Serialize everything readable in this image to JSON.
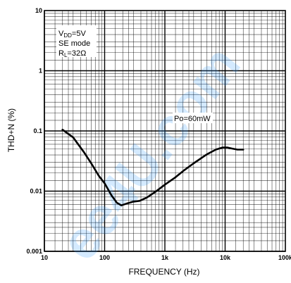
{
  "chart_data": {
    "type": "line",
    "xscale": "log",
    "yscale": "log",
    "xlim": [
      10,
      100000
    ],
    "ylim": [
      0.001,
      10
    ],
    "xlabel": "FREQUENCY (Hz)",
    "ylabel": "THD+N (%)",
    "xticks": [
      {
        "value": 10,
        "label": "10"
      },
      {
        "value": 100,
        "label": "100"
      },
      {
        "value": 1000,
        "label": "1k"
      },
      {
        "value": 10000,
        "label": "10k"
      },
      {
        "value": 100000,
        "label": "100k"
      }
    ],
    "yticks": [
      {
        "value": 10,
        "label": "10"
      },
      {
        "value": 1,
        "label": "1"
      },
      {
        "value": 0.1,
        "label": "0.1"
      },
      {
        "value": 0.01,
        "label": "0.01"
      },
      {
        "value": 0.001,
        "label": "0.001"
      }
    ],
    "grid": true,
    "conditions": {
      "vdd_prefix": "V",
      "vdd_sub": "DD",
      "vdd_value": "=5V",
      "mode": "SE mode",
      "rl_prefix": "R",
      "rl_sub": "L",
      "rl_value": "=32Ω"
    },
    "series": [
      {
        "name": "Po=60mW",
        "color": "#000000",
        "points": [
          {
            "x": 20,
            "y": 0.105
          },
          {
            "x": 30,
            "y": 0.078
          },
          {
            "x": 45,
            "y": 0.045
          },
          {
            "x": 60,
            "y": 0.029
          },
          {
            "x": 80,
            "y": 0.018
          },
          {
            "x": 100,
            "y": 0.0135
          },
          {
            "x": 130,
            "y": 0.0085
          },
          {
            "x": 160,
            "y": 0.0064
          },
          {
            "x": 190,
            "y": 0.0058
          },
          {
            "x": 230,
            "y": 0.0062
          },
          {
            "x": 300,
            "y": 0.0067
          },
          {
            "x": 380,
            "y": 0.0069
          },
          {
            "x": 500,
            "y": 0.0078
          },
          {
            "x": 700,
            "y": 0.0098
          },
          {
            "x": 1000,
            "y": 0.0128
          },
          {
            "x": 1500,
            "y": 0.017
          },
          {
            "x": 2000,
            "y": 0.0215
          },
          {
            "x": 3000,
            "y": 0.029
          },
          {
            "x": 5000,
            "y": 0.041
          },
          {
            "x": 7000,
            "y": 0.049
          },
          {
            "x": 9000,
            "y": 0.053
          },
          {
            "x": 11000,
            "y": 0.053
          },
          {
            "x": 13000,
            "y": 0.051
          },
          {
            "x": 16000,
            "y": 0.049
          },
          {
            "x": 20000,
            "y": 0.049
          }
        ]
      }
    ]
  },
  "watermark": "ee4U.com",
  "colors": {
    "watermark": "#3aa0ff",
    "curve": "#000000",
    "grid": "#000000"
  }
}
